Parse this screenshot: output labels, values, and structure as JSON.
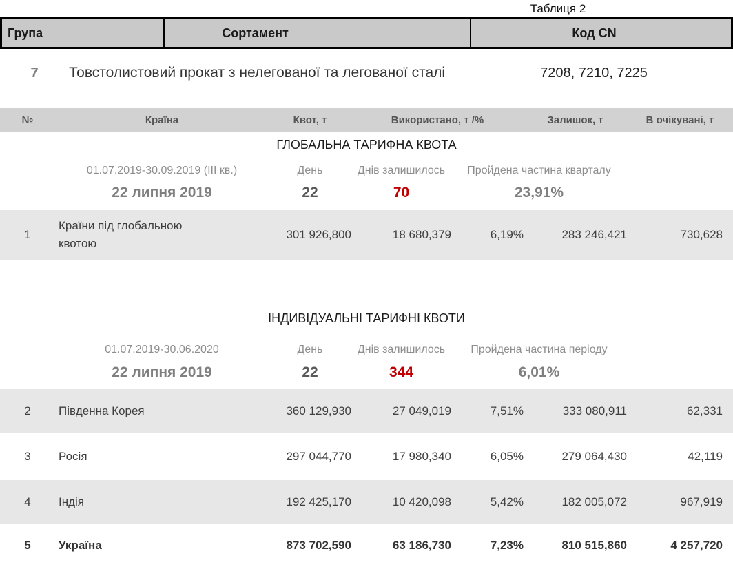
{
  "caption": "Таблиця 2",
  "colors": {
    "header_bg": "#c9c9c9",
    "subheader_bg": "#d2d2d2",
    "stripe_bg": "#e7e7e7",
    "alert_red": "#c00000",
    "muted_gray": "#7f7f7f"
  },
  "product_table": {
    "headers": {
      "group": "Група",
      "assortment": "Сортамент",
      "code": "Код CN"
    },
    "row": {
      "group": "7",
      "assortment": "Товстолистовий прокат з нелегованої та легованої сталі",
      "code": "7208, 7210, 7225"
    }
  },
  "quota_headers": {
    "num": "№",
    "country": "Країна",
    "quota": "Квот, т",
    "used": "Використано, т /%",
    "remaining": "Залишок, т",
    "expected": "В очікувані, т"
  },
  "global_section": {
    "title": "ГЛОБАЛЬНА ТАРИФНА КВОТА",
    "period": "01.07.2019-30.09.2019  (ІІІ кв.)",
    "day_label": "День",
    "days_left_label": "Днів залишилось",
    "elapsed_label": "Пройдена частина кварталу",
    "date": "22 липня 2019",
    "day": "22",
    "days_left": "70",
    "elapsed": "23,91%",
    "rows": [
      {
        "num": "1",
        "country": "Країни під глобальною квотою",
        "quota": "301 926,800",
        "used": "18 680,379",
        "used_pct": "6,19%",
        "remaining": "283 246,421",
        "expected": "730,628"
      }
    ]
  },
  "individual_section": {
    "title": "ІНДИВІДУАЛЬНІ ТАРИФНІ КВОТИ",
    "period": "01.07.2019-30.06.2020",
    "day_label": "День",
    "days_left_label": "Днів залишилось",
    "elapsed_label": "Пройдена частина періоду",
    "date": "22 липня 2019",
    "day": "22",
    "days_left": "344",
    "elapsed": "6,01%",
    "rows": [
      {
        "num": "2",
        "country": "Південна Корея",
        "quota": "360 129,930",
        "used": "27 049,019",
        "used_pct": "7,51%",
        "remaining": "333 080,911",
        "expected": "62,331"
      },
      {
        "num": "3",
        "country": "Росія",
        "quota": "297 044,770",
        "used": "17 980,340",
        "used_pct": "6,05%",
        "remaining": "279 064,430",
        "expected": "42,119"
      },
      {
        "num": "4",
        "country": "Індія",
        "quota": "192 425,170",
        "used": "10 420,098",
        "used_pct": "5,42%",
        "remaining": "182 005,072",
        "expected": "967,919"
      },
      {
        "num": "5",
        "country": "Україна",
        "quota": "873 702,590",
        "used": "63 186,730",
        "used_pct": "7,23%",
        "remaining": "810 515,860",
        "expected": "4 257,720"
      }
    ]
  }
}
